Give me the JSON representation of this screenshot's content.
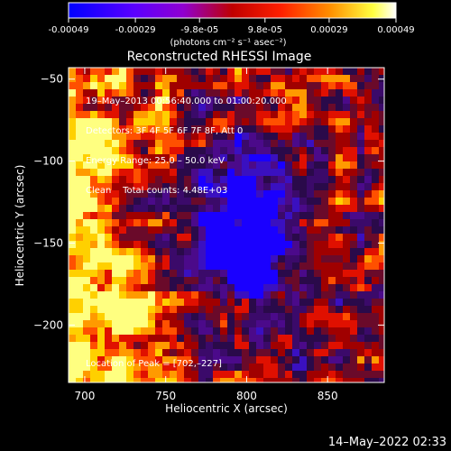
{
  "colorbar": {
    "ticks": [
      "-0.00049",
      "-0.00029",
      "-9.8e-05",
      "9.8e-05",
      "0.00029",
      "0.00049"
    ],
    "tick_values": [
      -0.00049,
      -0.00029,
      -9.8e-05,
      9.8e-05,
      0.00029,
      0.00049
    ],
    "range": [
      -0.00049,
      0.00049
    ],
    "unit_label": "(photons cm⁻² s⁻¹ asec⁻²)",
    "colors": [
      "#0000ff",
      "#6a00ff",
      "#c000c0",
      "#ff0000",
      "#ff8000",
      "#ffff00",
      "#ffffff"
    ]
  },
  "chart_data": {
    "type": "heatmap",
    "title": "Reconstructed RHESSI Image",
    "xlabel": "Heliocentric X (arcsec)",
    "ylabel": "Heliocentric Y (arcsec)",
    "xlim": [
      690,
      885
    ],
    "ylim": [
      -235,
      -43
    ],
    "xticks": [
      700,
      750,
      800,
      850
    ],
    "yticks": [
      -50,
      -100,
      -150,
      -200
    ],
    "xtick_labels": [
      "700",
      "750",
      "800",
      "850"
    ],
    "ytick_labels": [
      "−50",
      "−100",
      "−150",
      "−200"
    ],
    "annotations": [
      "19–May–2013 00:56:40.000 to 01:00:20.000",
      "Detectors: 3F 4F 5F 6F 7F 8F, Att 0",
      "Energy Range: 25.0 – 50.0 keV",
      "Clean    Total counts: 4.48E+03"
    ],
    "peak_label": "Location of Peak = [702,–227]",
    "peak": [
      702,
      -227
    ],
    "grid": false
  },
  "footer": {
    "timestamp": "14–May–2022 02:33"
  }
}
